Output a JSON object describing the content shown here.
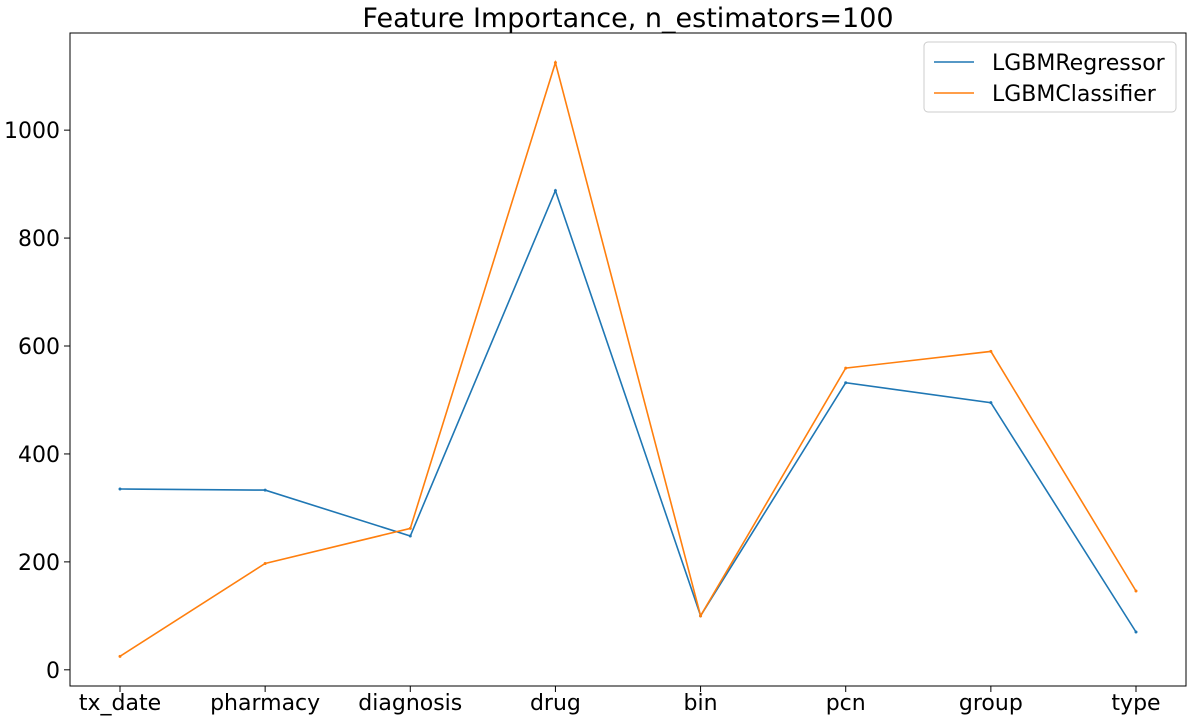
{
  "chart_data": {
    "type": "line",
    "title": "Feature Importance, n_estimators=100",
    "xlabel": "",
    "ylabel": "",
    "categories": [
      "tx_date",
      "pharmacy",
      "diagnosis",
      "drug",
      "bin",
      "pcn",
      "group",
      "type"
    ],
    "ylim": [
      -30,
      1180
    ],
    "yticks": [
      0,
      200,
      400,
      600,
      800,
      1000
    ],
    "grid": false,
    "legend_position": "top-right",
    "series": [
      {
        "name": "LGBMRegressor",
        "color": "#1f77b4",
        "values": [
          335,
          333,
          248,
          888,
          100,
          532,
          495,
          70
        ]
      },
      {
        "name": "LGBMClassifier",
        "color": "#ff7f0e",
        "values": [
          25,
          197,
          262,
          1125,
          100,
          559,
          590,
          146
        ]
      }
    ]
  }
}
